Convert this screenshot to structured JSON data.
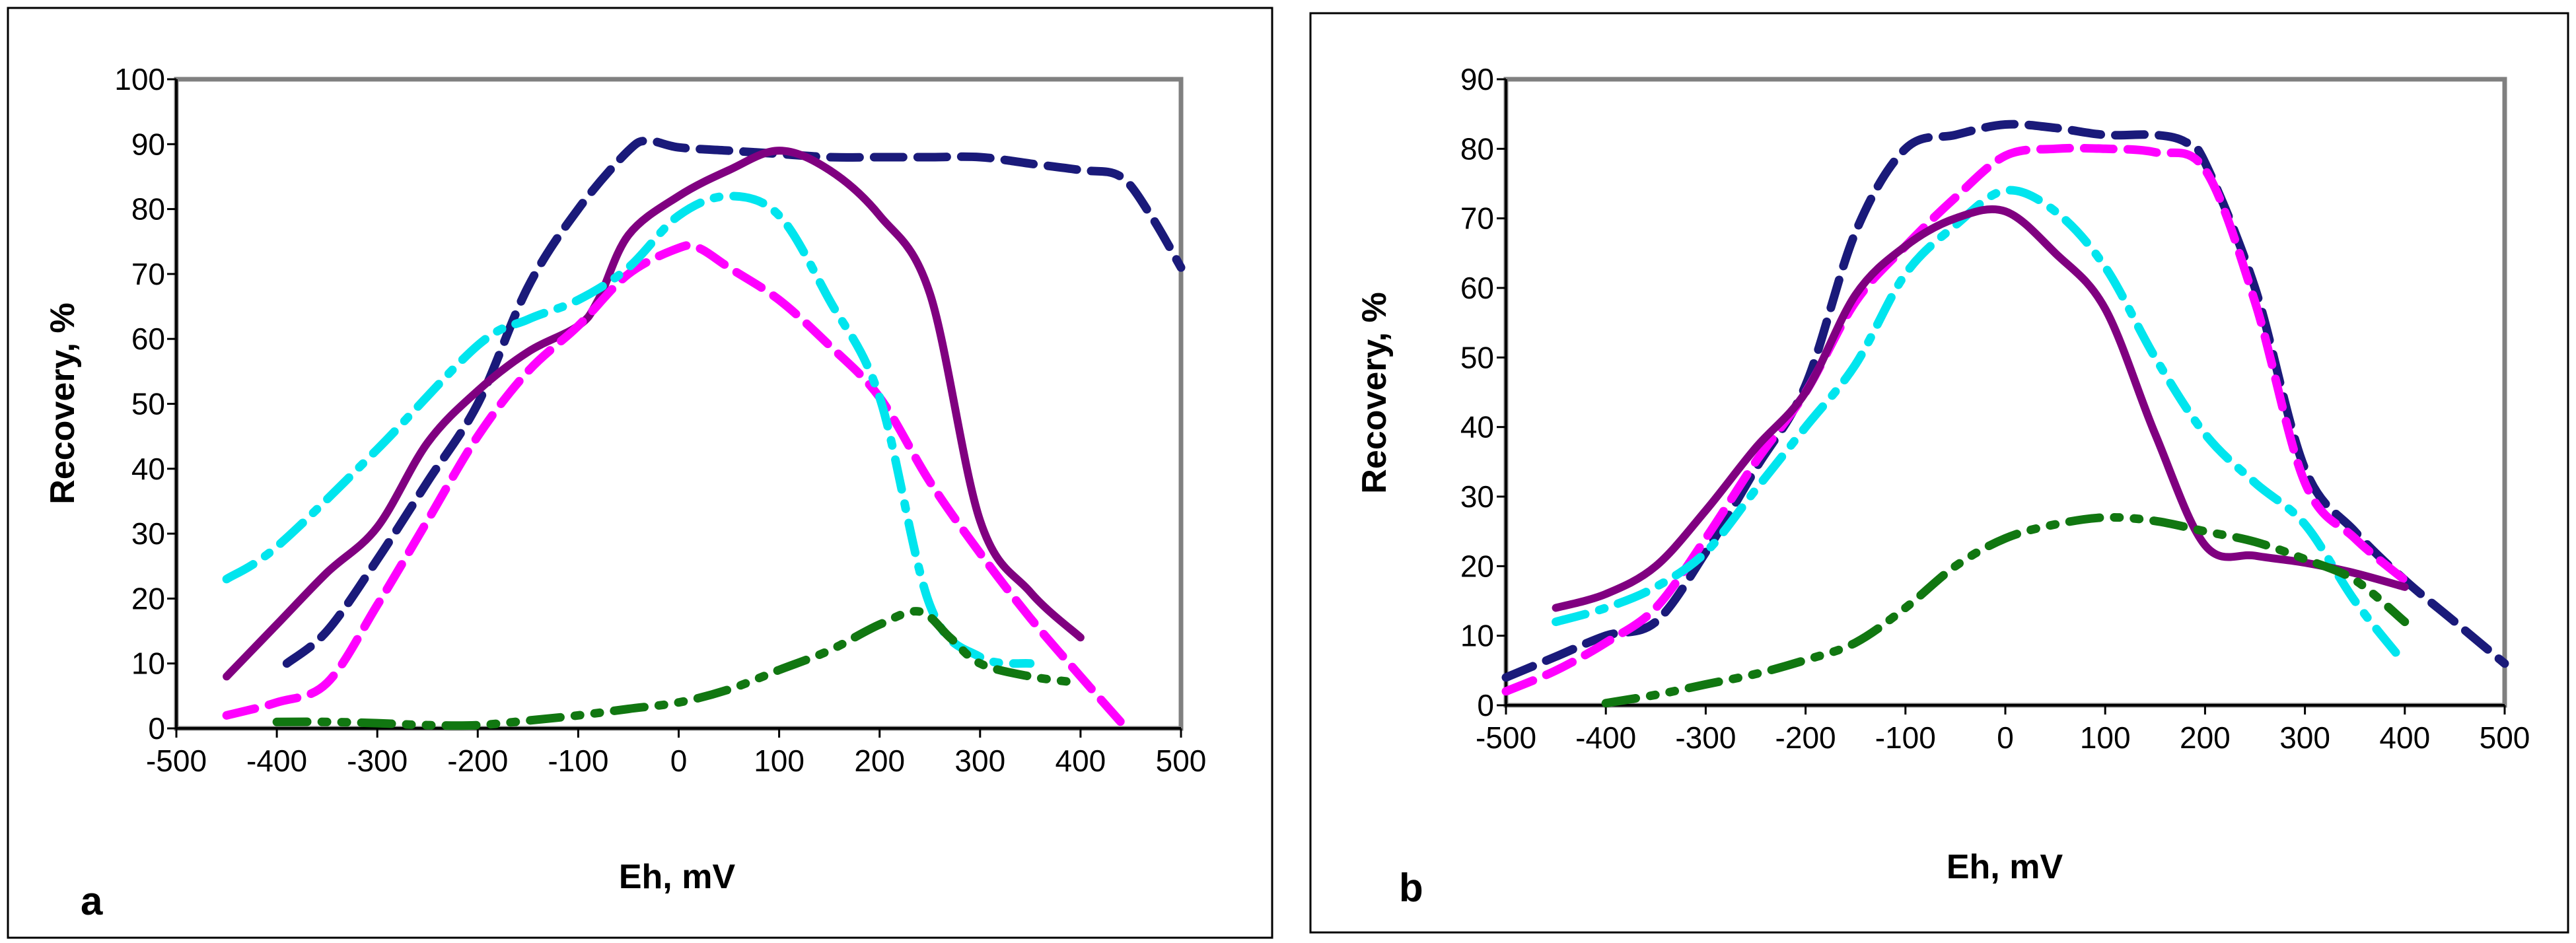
{
  "chart_data": [
    {
      "type": "line",
      "panel_label": "a",
      "xlabel": "Eh, mV",
      "ylabel": "Recovery, %",
      "xlim": [
        -500,
        500
      ],
      "ylim": [
        0,
        100
      ],
      "xticks": [
        -500,
        -400,
        -300,
        -200,
        -100,
        0,
        100,
        200,
        300,
        400,
        500
      ],
      "yticks": [
        0,
        10,
        20,
        30,
        40,
        50,
        60,
        70,
        80,
        90,
        100
      ],
      "series": [
        {
          "name": "navy-dashed",
          "color": "#1a1a7a",
          "style": "dashed",
          "x": [
            -390,
            -350,
            -300,
            -250,
            -200,
            -150,
            -100,
            -50,
            -30,
            0,
            50,
            100,
            150,
            200,
            250,
            300,
            350,
            400,
            440,
            470,
            500
          ],
          "y": [
            10,
            15,
            26,
            38,
            50,
            68,
            80,
            89,
            90.5,
            89.5,
            89,
            88.5,
            88,
            88,
            88,
            88,
            87,
            86,
            85,
            79,
            71
          ]
        },
        {
          "name": "purple-solid",
          "color": "#800080",
          "style": "solid",
          "x": [
            -450,
            -400,
            -350,
            -300,
            -250,
            -200,
            -150,
            -100,
            -80,
            -50,
            0,
            50,
            100,
            150,
            200,
            250,
            300,
            350,
            400
          ],
          "y": [
            8,
            16,
            24,
            31,
            44,
            52,
            58,
            62,
            66,
            76,
            82,
            86,
            89,
            86,
            79,
            67,
            32,
            21,
            14
          ]
        },
        {
          "name": "magenta-dashed",
          "color": "#ff00ff",
          "style": "dashed",
          "x": [
            -450,
            -400,
            -350,
            -300,
            -250,
            -200,
            -150,
            -100,
            -50,
            0,
            20,
            50,
            100,
            150,
            200,
            250,
            300,
            350,
            400,
            440
          ],
          "y": [
            2,
            4,
            7,
            19,
            32,
            45,
            55,
            62,
            70,
            74,
            74,
            71,
            66,
            59,
            51,
            38,
            27,
            17,
            8,
            1
          ]
        },
        {
          "name": "cyan-dashdot",
          "color": "#00e5ee",
          "style": "dashdot",
          "x": [
            -450,
            -400,
            -300,
            -200,
            -150,
            -100,
            -50,
            0,
            50,
            100,
            150,
            200,
            250,
            300,
            350
          ],
          "y": [
            23,
            28,
            43,
            59,
            63,
            66,
            71,
            79,
            82,
            79,
            66,
            51,
            19,
            11,
            10
          ]
        },
        {
          "name": "green-dashdotdot",
          "color": "#117711",
          "style": "dashdotdot",
          "x": [
            -400,
            -350,
            -300,
            -250,
            -200,
            -150,
            -100,
            -50,
            0,
            50,
            100,
            150,
            200,
            240,
            270,
            300,
            350,
            400
          ],
          "y": [
            1,
            1,
            0.8,
            0.5,
            0.5,
            1.2,
            2,
            3,
            4,
            6,
            9,
            12,
            16,
            18,
            14,
            10,
            8,
            7
          ]
        }
      ]
    },
    {
      "type": "line",
      "panel_label": "b",
      "xlabel": "Eh, mV",
      "ylabel": "Recovery, %",
      "xlim": [
        -500,
        500
      ],
      "ylim": [
        0,
        90
      ],
      "xticks": [
        -500,
        -400,
        -300,
        -200,
        -100,
        0,
        100,
        200,
        300,
        400,
        500
      ],
      "yticks": [
        0,
        10,
        20,
        30,
        40,
        50,
        60,
        70,
        80,
        90
      ],
      "series": [
        {
          "name": "navy-dashed",
          "color": "#1a1a7a",
          "style": "dashed",
          "x": [
            -500,
            -450,
            -400,
            -350,
            -300,
            -250,
            -200,
            -150,
            -100,
            -50,
            0,
            50,
            100,
            150,
            180,
            200,
            250,
            300,
            350,
            400,
            450,
            500
          ],
          "y": [
            4,
            7,
            10,
            12,
            22,
            34,
            46,
            68,
            80,
            82,
            83.5,
            83,
            82,
            82,
            81,
            78,
            60,
            34,
            25,
            18,
            12,
            6
          ]
        },
        {
          "name": "magenta-dashed",
          "color": "#ff00ff",
          "style": "dashed",
          "x": [
            -500,
            -450,
            -400,
            -350,
            -300,
            -250,
            -200,
            -150,
            -100,
            -50,
            0,
            50,
            100,
            150,
            200,
            250,
            300,
            350,
            400
          ],
          "y": [
            2,
            5,
            9,
            14,
            24,
            35,
            45,
            58,
            66,
            73,
            79,
            80,
            80,
            79.5,
            77,
            58,
            32,
            24,
            18
          ]
        },
        {
          "name": "cyan-dashdot",
          "color": "#00e5ee",
          "style": "dashdot",
          "x": [
            -450,
            -400,
            -350,
            -300,
            -250,
            -200,
            -150,
            -100,
            -50,
            0,
            50,
            100,
            150,
            200,
            250,
            300,
            350,
            400
          ],
          "y": [
            12,
            14,
            17,
            22,
            31,
            40,
            49,
            62,
            69,
            74,
            71,
            63,
            50,
            39,
            32,
            26,
            15,
            6
          ]
        },
        {
          "name": "purple-solid",
          "color": "#800080",
          "style": "solid",
          "x": [
            -450,
            -400,
            -350,
            -300,
            -250,
            -200,
            -150,
            -100,
            -50,
            0,
            50,
            100,
            150,
            200,
            250,
            300,
            350,
            400
          ],
          "y": [
            14,
            16,
            20,
            28,
            37,
            45,
            59,
            66,
            70,
            71,
            65,
            57,
            39,
            23,
            21.5,
            20.5,
            19,
            17
          ]
        },
        {
          "name": "green-dashdotdot",
          "color": "#117711",
          "style": "dashdotdot",
          "x": [
            -400,
            -350,
            -300,
            -250,
            -200,
            -150,
            -100,
            -50,
            0,
            50,
            100,
            150,
            200,
            250,
            300,
            350,
            400
          ],
          "y": [
            0.3,
            1.5,
            3,
            4.5,
            6.5,
            9,
            14,
            20,
            24,
            26,
            27,
            26.5,
            25,
            23.5,
            21,
            18,
            12
          ]
        }
      ]
    }
  ]
}
